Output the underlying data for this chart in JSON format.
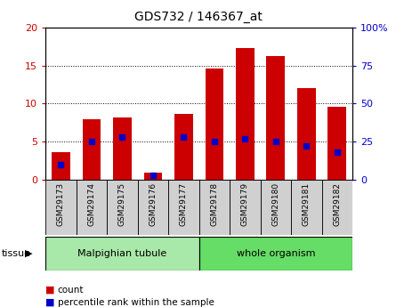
{
  "title": "GDS732 / 146367_at",
  "samples": [
    "GSM29173",
    "GSM29174",
    "GSM29175",
    "GSM29176",
    "GSM29177",
    "GSM29178",
    "GSM29179",
    "GSM29180",
    "GSM29181",
    "GSM29182"
  ],
  "counts": [
    3.6,
    7.9,
    8.2,
    0.9,
    8.7,
    14.6,
    17.3,
    16.3,
    12.1,
    9.6
  ],
  "percentiles": [
    10,
    25,
    28,
    3,
    28,
    25,
    27,
    25,
    22,
    18
  ],
  "ylim_left": [
    0,
    20
  ],
  "ylim_right": [
    0,
    100
  ],
  "yticks_left": [
    0,
    5,
    10,
    15,
    20
  ],
  "yticks_right": [
    0,
    25,
    50,
    75,
    100
  ],
  "groups": [
    {
      "label": "Malpighian tubule",
      "start": 0,
      "end": 5,
      "color": "#a8e8a8"
    },
    {
      "label": "whole organism",
      "start": 5,
      "end": 10,
      "color": "#66dd66"
    }
  ],
  "bar_color": "#cc0000",
  "marker_color": "#0000cc",
  "left_tick_color": "#cc0000",
  "right_tick_color": "#0000cc",
  "tissue_label": "tissue",
  "legend_count": "count",
  "legend_pct": "percentile rank within the sample",
  "xlabel_bg": "#d0d0d0"
}
